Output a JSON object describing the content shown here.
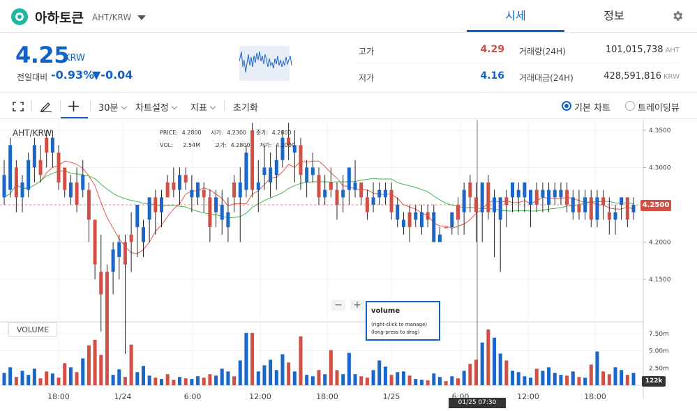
{
  "header": {
    "coin_name": "아하토큰",
    "pair": "AHT/KRW",
    "tabs": [
      {
        "label": "시세",
        "active": true
      },
      {
        "label": "정보",
        "active": false
      }
    ],
    "icons": {
      "logo": "coin-logo-icon",
      "settings": "gear-icon",
      "dropdown": "chevron-down-icon"
    }
  },
  "summary": {
    "price": "4.25",
    "price_unit": "KRW",
    "change_label": "전일대비",
    "change_rate": "-0.93%",
    "change_value": "▼-0.04",
    "high_label": "고가",
    "high_value": "4.29",
    "low_label": "저가",
    "low_value": "4.16",
    "volume_label": "거래량(24H)",
    "volume_value": "101,015,738",
    "volume_unit": "AHT",
    "amount_label": "거래대금(24H)",
    "amount_value": "428,591,816",
    "amount_unit": "KRW"
  },
  "toolbar": {
    "interval": "30분",
    "chart_settings": "차트설정",
    "indicators": "지표",
    "reset": "초기화",
    "basic_chart": "기본 차트",
    "tradingview": "트레이딩뷰",
    "basic_selected": true
  },
  "chart": {
    "pair_label": "AHT/KRW",
    "legend": {
      "price_label": "PRICE:",
      "price_value": "4.2800",
      "open_label": "시가:",
      "open_value": "4.2300",
      "close_label": "종가:",
      "close_value": "4.2800",
      "vol_label": "VOL:",
      "vol_value": "2.54M",
      "high_label": "고가:",
      "high_value": "4.2800",
      "low_label": "저가:",
      "low_value": "4.2000"
    },
    "current_price_tag": "4.2500",
    "current_volume_tag": "122k",
    "crosshair_time": "01/25 07:30",
    "volume_pane_label": "VOLUME",
    "tooltip": {
      "title": "volume",
      "line1": "(right-click to manage)",
      "line2": "(long-press to drag)"
    },
    "zoom_minus": "−",
    "zoom_plus": "+",
    "price_axis": [
      "4.3500",
      "4.3000",
      "4.2500",
      "4.2000",
      "4.1500"
    ],
    "volume_axis": [
      "7.50m",
      "5.00m",
      "2.50m"
    ],
    "time_axis": [
      "18:00",
      "1/24",
      "6:00",
      "12:00",
      "18:00",
      "1/25",
      "6:00",
      "12:00",
      "18:00"
    ],
    "up_color": "#d24f45",
    "down_color": "#1b66c9"
  },
  "chart_data": {
    "type": "candlestick",
    "title": "",
    "interval": "30분",
    "ylim": [
      4.1,
      4.36
    ],
    "price_ticks": [
      4.35,
      4.3,
      4.25,
      4.2,
      4.15
    ],
    "volume_ticks_millions": [
      7.5,
      5.0,
      2.5
    ],
    "x_labels": [
      "18:00",
      "1/24",
      "6:00",
      "12:00",
      "18:00",
      "1/25",
      "6:00",
      "12:00",
      "18:00"
    ],
    "candles": [
      [
        4.29,
        4.26,
        4.31,
        4.25,
        1.8
      ],
      [
        4.33,
        4.27,
        4.34,
        4.26,
        2.6
      ],
      [
        4.26,
        4.3,
        4.31,
        4.24,
        1.2
      ],
      [
        4.28,
        4.26,
        4.29,
        4.24,
        2.1
      ],
      [
        4.31,
        4.27,
        4.32,
        4.26,
        1.5
      ],
      [
        4.33,
        4.3,
        4.34,
        4.28,
        2.4
      ],
      [
        4.29,
        4.31,
        4.33,
        4.28,
        1.0
      ],
      [
        4.32,
        4.34,
        4.35,
        4.3,
        2.0
      ],
      [
        4.34,
        4.32,
        4.35,
        4.3,
        1.7
      ],
      [
        4.28,
        4.32,
        4.33,
        4.27,
        1.1
      ],
      [
        4.27,
        4.3,
        4.3,
        4.26,
        3.2
      ],
      [
        4.28,
        4.26,
        4.29,
        4.25,
        2.6
      ],
      [
        4.25,
        4.28,
        4.3,
        4.24,
        1.9
      ],
      [
        4.29,
        4.27,
        4.31,
        4.26,
        3.9
      ],
      [
        4.23,
        4.27,
        4.28,
        4.2,
        5.8
      ],
      [
        4.17,
        4.23,
        4.23,
        4.15,
        6.6
      ],
      [
        4.13,
        4.16,
        4.21,
        4.08,
        4.4
      ],
      [
        4.03,
        4.16,
        4.17,
        4.03,
        3.0
      ],
      [
        4.19,
        4.16,
        4.2,
        4.13,
        1.5
      ],
      [
        4.2,
        4.18,
        4.21,
        4.15,
        2.3
      ],
      [
        4.17,
        4.2,
        4.21,
        4.05,
        1.2
      ],
      [
        4.2,
        4.21,
        4.24,
        4.16,
        5.9
      ],
      [
        4.25,
        4.22,
        4.25,
        4.18,
        1.9
      ],
      [
        4.22,
        4.2,
        4.23,
        4.18,
        2.8
      ],
      [
        4.26,
        4.23,
        4.26,
        4.2,
        1.4
      ],
      [
        4.24,
        4.26,
        4.27,
        4.21,
        1.1
      ],
      [
        4.26,
        4.24,
        4.27,
        4.22,
        0.9
      ],
      [
        4.26,
        4.28,
        4.29,
        4.26,
        1.6
      ],
      [
        4.27,
        4.28,
        4.3,
        4.26,
        0.8
      ],
      [
        4.29,
        4.27,
        4.3,
        4.25,
        1.2
      ],
      [
        4.28,
        4.29,
        4.3,
        4.27,
        1.0
      ],
      [
        4.27,
        4.26,
        4.29,
        4.24,
        0.9
      ],
      [
        4.28,
        4.26,
        4.28,
        4.25,
        1.3
      ],
      [
        4.26,
        4.27,
        4.28,
        4.24,
        1.1
      ],
      [
        4.22,
        4.26,
        4.27,
        4.2,
        1.6
      ],
      [
        4.26,
        4.24,
        4.27,
        4.22,
        1.4
      ],
      [
        4.25,
        4.23,
        4.27,
        4.21,
        2.4
      ],
      [
        4.24,
        4.22,
        4.26,
        4.2,
        2.0
      ],
      [
        4.26,
        4.28,
        4.29,
        4.24,
        1.3
      ],
      [
        4.28,
        4.26,
        4.3,
        4.2,
        3.6
      ],
      [
        4.32,
        4.27,
        4.33,
        4.26,
        7.6
      ],
      [
        4.27,
        4.35,
        4.36,
        4.26,
        7.6
      ],
      [
        4.28,
        4.27,
        4.31,
        4.24,
        2.0
      ],
      [
        4.3,
        4.29,
        4.33,
        4.27,
        2.9
      ],
      [
        4.3,
        4.28,
        4.32,
        4.26,
        3.7
      ],
      [
        4.31,
        4.29,
        4.33,
        4.27,
        2.2
      ],
      [
        4.34,
        4.31,
        4.35,
        4.3,
        4.5
      ],
      [
        4.33,
        4.34,
        4.36,
        4.31,
        3.3
      ],
      [
        4.33,
        4.32,
        4.35,
        4.28,
        2.0
      ],
      [
        4.29,
        4.33,
        4.34,
        4.27,
        7.1
      ],
      [
        4.3,
        4.28,
        4.31,
        4.26,
        1.5
      ],
      [
        4.3,
        4.29,
        4.32,
        4.28,
        1.3
      ],
      [
        4.26,
        4.29,
        4.3,
        4.25,
        2.2
      ],
      [
        4.27,
        4.26,
        4.29,
        4.25,
        1.6
      ],
      [
        4.27,
        4.28,
        4.3,
        4.26,
        5.1
      ],
      [
        4.25,
        4.27,
        4.28,
        4.23,
        2.2
      ],
      [
        4.27,
        4.26,
        4.29,
        4.24,
        1.6
      ],
      [
        4.3,
        4.27,
        4.3,
        4.25,
        4.7
      ],
      [
        4.28,
        4.27,
        4.31,
        4.26,
        1.6
      ],
      [
        4.26,
        4.28,
        4.28,
        4.25,
        1.3
      ],
      [
        4.24,
        4.26,
        4.27,
        4.23,
        1.1
      ],
      [
        4.26,
        4.25,
        4.28,
        4.24,
        2.2
      ],
      [
        4.27,
        4.26,
        4.28,
        4.25,
        3.6
      ],
      [
        4.27,
        4.26,
        4.28,
        4.25,
        2.7
      ],
      [
        4.24,
        4.27,
        4.28,
        4.23,
        1.5
      ],
      [
        4.25,
        4.23,
        4.26,
        4.22,
        1.9
      ],
      [
        4.23,
        4.22,
        4.24,
        4.21,
        2.0
      ],
      [
        4.22,
        4.24,
        4.25,
        4.2,
        1.4
      ],
      [
        4.24,
        4.23,
        4.25,
        4.22,
        0.9
      ],
      [
        4.24,
        4.22,
        4.25,
        4.21,
        0.8
      ],
      [
        4.23,
        4.24,
        4.25,
        4.22,
        0.7
      ],
      [
        4.24,
        4.2,
        4.25,
        4.2,
        1.7
      ],
      [
        4.21,
        4.2,
        4.22,
        4.2,
        1.2
      ],
      [
        4.22,
        4.22,
        4.22,
        4.22,
        0.6
      ],
      [
        4.24,
        4.22,
        4.24,
        4.21,
        1.3
      ],
      [
        4.23,
        4.25,
        4.26,
        4.21,
        1.0
      ],
      [
        4.27,
        4.24,
        4.28,
        4.21,
        2.1
      ],
      [
        4.26,
        4.28,
        4.29,
        4.24,
        3.1
      ],
      [
        4.24,
        4.26,
        4.28,
        4.2,
        3.7
      ],
      [
        4.28,
        4.24,
        4.28,
        4.2,
        6.2
      ],
      [
        4.24,
        4.28,
        4.29,
        4.23,
        8.1
      ],
      [
        4.26,
        4.24,
        4.27,
        4.18,
        6.9
      ],
      [
        4.26,
        4.23,
        4.26,
        4.16,
        4.6
      ],
      [
        4.25,
        4.26,
        4.27,
        4.22,
        3.6
      ],
      [
        4.28,
        4.26,
        4.28,
        4.24,
        2.1
      ],
      [
        4.27,
        4.26,
        4.28,
        4.24,
        1.9
      ],
      [
        4.28,
        4.26,
        4.28,
        4.24,
        1.3
      ],
      [
        4.27,
        4.25,
        4.27,
        4.22,
        1.1
      ],
      [
        4.25,
        4.27,
        4.28,
        4.24,
        2.4
      ],
      [
        4.27,
        4.26,
        4.28,
        4.24,
        2.1
      ],
      [
        4.27,
        4.25,
        4.28,
        4.24,
        2.6
      ],
      [
        4.27,
        4.26,
        4.28,
        4.25,
        1.8
      ],
      [
        4.27,
        4.26,
        4.28,
        4.25,
        1.5
      ],
      [
        4.25,
        4.27,
        4.28,
        4.24,
        1.4
      ],
      [
        4.26,
        4.24,
        4.27,
        4.23,
        2.0
      ],
      [
        4.24,
        4.25,
        4.27,
        4.23,
        1.2
      ],
      [
        4.26,
        4.24,
        4.27,
        4.23,
        1.1
      ],
      [
        4.23,
        4.26,
        4.27,
        4.22,
        3.0
      ],
      [
        4.26,
        4.23,
        4.27,
        4.22,
        4.9
      ],
      [
        4.25,
        4.26,
        4.27,
        4.23,
        2.0
      ],
      [
        4.23,
        4.24,
        4.26,
        4.21,
        1.6
      ],
      [
        4.24,
        4.23,
        4.25,
        4.21,
        2.6
      ],
      [
        4.26,
        4.25,
        4.26,
        4.23,
        2.2
      ],
      [
        4.23,
        4.26,
        4.26,
        4.22,
        1.5
      ],
      [
        4.25,
        4.24,
        4.26,
        4.23,
        1.8
      ]
    ]
  }
}
